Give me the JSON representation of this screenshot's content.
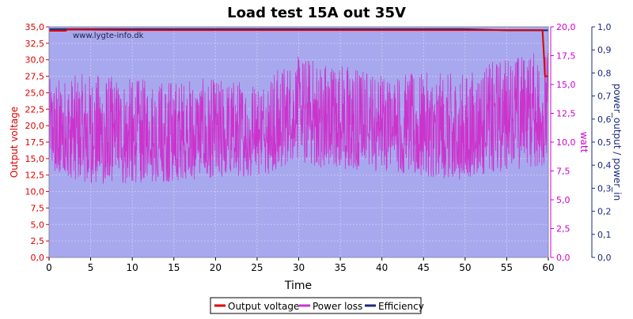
{
  "chart_data": {
    "type": "line",
    "title": "Load test 15A out 35V",
    "watermark": "www.lygte-info.dk",
    "xlabel": "Time",
    "ylabel_left": "Output voltage",
    "ylabel_right1": "watt",
    "ylabel_right2": "power_output / power_in",
    "xlim": [
      0,
      60
    ],
    "ylim_left": [
      0,
      35
    ],
    "ylim_right1": [
      0,
      20
    ],
    "ylim_right2": [
      0,
      1
    ],
    "grid": true,
    "legend_position": "bottom-center",
    "x_ticks": [
      "0",
      "5",
      "10",
      "15",
      "20",
      "25",
      "30",
      "35",
      "40",
      "45",
      "50",
      "55",
      "60"
    ],
    "y_left_ticks": [
      "0,0",
      "2,5",
      "5,0",
      "7,5",
      "10,0",
      "12,5",
      "15,0",
      "17,5",
      "20,0",
      "22,5",
      "25,0",
      "27,5",
      "30,0",
      "32,5",
      "35,0"
    ],
    "y_right1_ticks": [
      "0,0",
      "2,5",
      "5,0",
      "7,5",
      "10,0",
      "12,5",
      "15,0",
      "17,5",
      "20,0"
    ],
    "y_right2_ticks": [
      "0,0",
      "0,1",
      "0,2",
      "0,3",
      "0,4",
      "0,5",
      "0,6",
      "0,7",
      "0,8",
      "0,9",
      "1,0"
    ],
    "series": [
      {
        "name": "Output voltage",
        "axis": "left",
        "color": "#dd0000",
        "x": [
          0,
          2,
          2.2,
          10,
          20,
          30,
          40,
          50,
          59.3,
          59.5,
          59.6,
          60
        ],
        "y": [
          34.4,
          34.4,
          34.6,
          34.5,
          34.5,
          34.5,
          34.5,
          34.5,
          34.5,
          30,
          27.5,
          27.5
        ]
      },
      {
        "name": "Power loss",
        "axis": "right1",
        "color": "#cc33cc",
        "x": [
          0,
          5,
          10,
          15,
          20,
          25,
          30,
          35,
          40,
          45,
          50,
          55,
          60
        ],
        "y": [
          10.5,
          10.5,
          10.0,
          10.0,
          10.0,
          10.0,
          12.0,
          11.5,
          11.0,
          10.5,
          10.0,
          12.0,
          12.5
        ],
        "range_low": [
          7.5,
          6.3,
          6.5,
          6.5,
          7.0,
          7.0,
          8.0,
          7.5,
          7.5,
          7.0,
          6.5,
          7.5,
          8.0
        ],
        "range_high": [
          15.5,
          16.0,
          15.5,
          15.5,
          15.5,
          15.5,
          17.5,
          17.0,
          16.0,
          16.0,
          16.0,
          17.5,
          18.0
        ]
      },
      {
        "name": "Efficiency",
        "axis": "right2",
        "color": "#1a2a7a",
        "x": [
          0,
          10,
          20,
          30,
          40,
          50,
          55,
          60
        ],
        "y": [
          0.99,
          0.99,
          0.99,
          0.99,
          0.99,
          0.99,
          0.985,
          0.985
        ]
      }
    ]
  },
  "colors": {
    "plot_background": "#a8a8ee",
    "grid": "#c8c8f4",
    "left_axis": "#dd0000",
    "right1_axis": "#cc00cc",
    "right2_axis": "#1a2a7a"
  }
}
